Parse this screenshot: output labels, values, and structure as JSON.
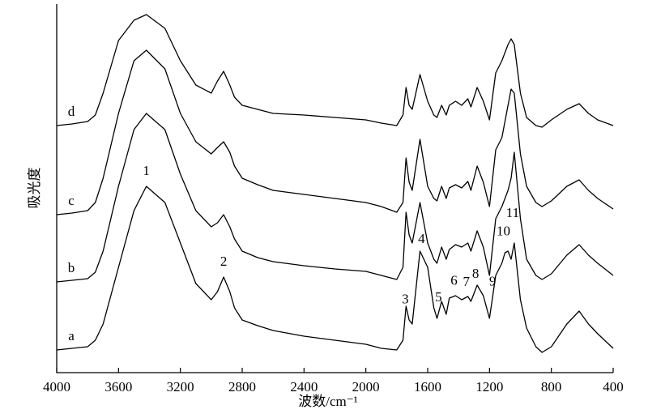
{
  "chart_data": {
    "type": "line",
    "xlabel": "波数/cm⁻¹",
    "ylabel": "吸光度",
    "x": [
      4000,
      3900,
      3800,
      3750,
      3700,
      3600,
      3500,
      3420,
      3300,
      3200,
      3100,
      3000,
      2960,
      2920,
      2880,
      2850,
      2800,
      2700,
      2600,
      2400,
      2200,
      2000,
      1900,
      1800,
      1760,
      1740,
      1720,
      1700,
      1650,
      1600,
      1560,
      1540,
      1510,
      1480,
      1460,
      1420,
      1380,
      1340,
      1320,
      1280,
      1240,
      1200,
      1160,
      1120,
      1100,
      1080,
      1060,
      1040,
      1000,
      960,
      900,
      860,
      800,
      700,
      620,
      560,
      500,
      400
    ],
    "series": [
      {
        "name": "a",
        "color": "#000000",
        "values": [
          28,
          30,
          32,
          40,
          60,
          130,
          200,
          230,
          210,
          160,
          110,
          90,
          100,
          118,
          100,
          80,
          65,
          58,
          52,
          45,
          40,
          35,
          30,
          28,
          40,
          82,
          65,
          60,
          150,
          130,
          80,
          67,
          88,
          72,
          92,
          95,
          90,
          94,
          88,
          108,
          95,
          67,
          120,
          135,
          148,
          150,
          140,
          160,
          90,
          55,
          32,
          25,
          32,
          60,
          76,
          60,
          48,
          30
        ]
      },
      {
        "name": "b",
        "color": "#000000",
        "values": [
          112,
          114,
          116,
          124,
          150,
          230,
          300,
          320,
          300,
          245,
          200,
          180,
          185,
          195,
          180,
          165,
          150,
          142,
          137,
          132,
          128,
          125,
          120,
          115,
          130,
          198,
          170,
          160,
          210,
          160,
          140,
          135,
          155,
          140,
          152,
          158,
          155,
          160,
          150,
          175,
          155,
          120,
          190,
          205,
          215,
          225,
          240,
          272,
          190,
          140,
          120,
          115,
          122,
          145,
          158,
          145,
          135,
          120
        ]
      },
      {
        "name": "c",
        "color": "#000000",
        "values": [
          195,
          197,
          200,
          210,
          240,
          320,
          385,
          398,
          375,
          320,
          285,
          270,
          278,
          285,
          272,
          255,
          240,
          232,
          225,
          220,
          215,
          210,
          205,
          198,
          210,
          265,
          235,
          225,
          288,
          230,
          215,
          212,
          230,
          215,
          228,
          232,
          228,
          236,
          225,
          255,
          235,
          205,
          275,
          290,
          310,
          330,
          350,
          345,
          270,
          230,
          210,
          205,
          212,
          230,
          238,
          225,
          215,
          202
        ]
      },
      {
        "name": "d",
        "color": "#000000",
        "values": [
          305,
          307,
          310,
          318,
          345,
          410,
          435,
          442,
          425,
          385,
          355,
          345,
          360,
          372,
          355,
          340,
          330,
          325,
          320,
          318,
          315,
          312,
          308,
          305,
          318,
          352,
          330,
          325,
          368,
          335,
          318,
          315,
          330,
          318,
          330,
          335,
          330,
          338,
          328,
          352,
          335,
          312,
          370,
          385,
          395,
          405,
          412,
          405,
          345,
          315,
          305,
          303,
          312,
          325,
          332,
          320,
          312,
          305
        ]
      }
    ],
    "annotations": [
      {
        "text": "1",
        "x": 3420
      },
      {
        "text": "2",
        "x": 2920
      },
      {
        "text": "3",
        "x": 1745
      },
      {
        "text": "4",
        "x": 1640
      },
      {
        "text": "5",
        "x": 1530
      },
      {
        "text": "6",
        "x": 1430
      },
      {
        "text": "7",
        "x": 1350
      },
      {
        "text": "8",
        "x": 1290
      },
      {
        "text": "9",
        "x": 1180
      },
      {
        "text": "10",
        "x": 1110
      },
      {
        "text": "11",
        "x": 1050
      }
    ],
    "xlim": [
      4000,
      400
    ],
    "xticks": [
      4000,
      3600,
      3200,
      2800,
      2400,
      2000,
      1600,
      1200,
      800,
      400
    ],
    "ylim": [
      0,
      455
    ]
  }
}
